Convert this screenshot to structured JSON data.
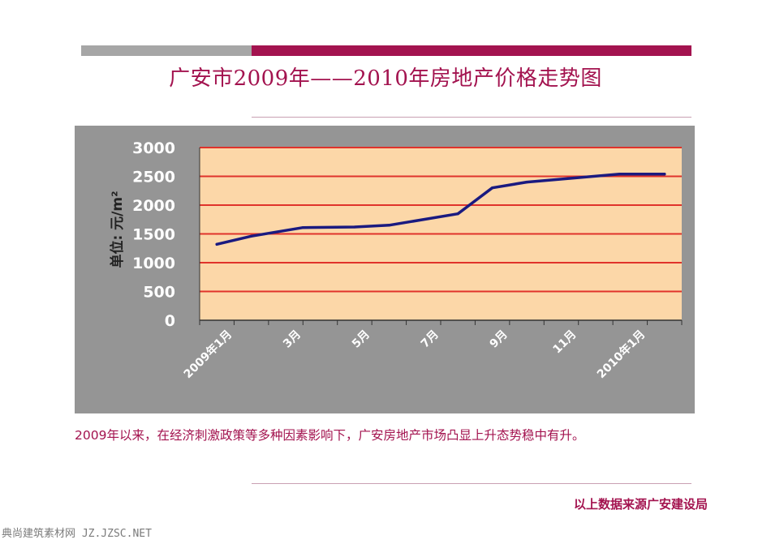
{
  "title": "广安市2009年——2010年房地产价格走势图",
  "description": "2009年以来，在经济刺激政策等多种因素影响下，广安房地产市场凸显上升态势稳中有升。",
  "source": "以上数据来源广安建设局",
  "watermark": "典尚建筑素材网 JZ.JZSC.NET",
  "colors": {
    "accent": "#a3134f",
    "gray_bar": "#a6a6a6",
    "plot_bg": "#fcd7a8",
    "chart_bg": "#959595",
    "gridline": "#e0332b",
    "line": "#1a1a80"
  },
  "chart_data": {
    "type": "line",
    "title": "",
    "xlabel": "",
    "ylabel": "单位: 元/m²",
    "ylim": [
      0,
      3000
    ],
    "yticks": [
      0,
      500,
      1000,
      1500,
      2000,
      2500,
      3000
    ],
    "grid": true,
    "x_tick_labels": [
      "2009年1月",
      "3月",
      "5月",
      "7月",
      "9月",
      "11月",
      "2010年1月"
    ],
    "series": [
      {
        "points": [
          {
            "x": 0.5,
            "y": 1320
          },
          {
            "x": 1.5,
            "y": 1460
          },
          {
            "x": 3.0,
            "y": 1610
          },
          {
            "x": 4.5,
            "y": 1620
          },
          {
            "x": 5.5,
            "y": 1650
          },
          {
            "x": 7.5,
            "y": 1850
          },
          {
            "x": 8.5,
            "y": 2300
          },
          {
            "x": 9.5,
            "y": 2400
          },
          {
            "x": 12.2,
            "y": 2540
          },
          {
            "x": 13.5,
            "y": 2540
          }
        ]
      }
    ]
  }
}
